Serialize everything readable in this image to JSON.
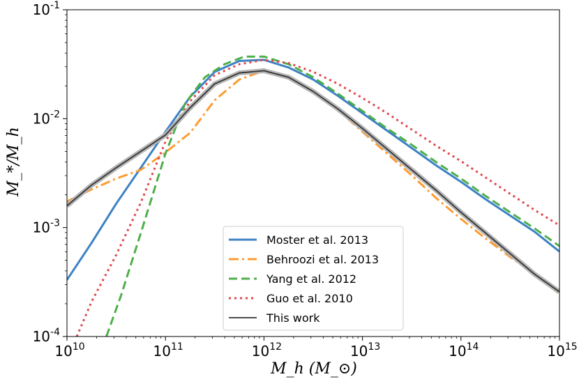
{
  "chart_data": {
    "type": "line",
    "xscale": "log",
    "yscale": "log",
    "xlim": [
      10,
      15
    ],
    "ylim": [
      -4,
      -1
    ],
    "xlabel": "M_h (M_⊙)",
    "ylabel": "M_*/M_h",
    "x_ticks": [
      {
        "base": "10",
        "exp": "10",
        "value": 10
      },
      {
        "base": "10",
        "exp": "11",
        "value": 11
      },
      {
        "base": "10",
        "exp": "12",
        "value": 12
      },
      {
        "base": "10",
        "exp": "13",
        "value": 13
      },
      {
        "base": "10",
        "exp": "14",
        "value": 14
      },
      {
        "base": "10",
        "exp": "15",
        "value": 15
      }
    ],
    "y_ticks": [
      {
        "base": "10",
        "exp": "-4",
        "value": -4
      },
      {
        "base": "10",
        "exp": "-3",
        "value": -3
      },
      {
        "base": "10",
        "exp": "-2",
        "value": -2
      },
      {
        "base": "10",
        "exp": "-1",
        "value": -1
      }
    ],
    "series": [
      {
        "name": "Moster et al. 2013",
        "color": "#3b82c4",
        "style": "solid",
        "x": [
          10.0,
          10.25,
          10.5,
          10.75,
          11.0,
          11.25,
          11.5,
          11.75,
          12.0,
          12.25,
          12.5,
          12.75,
          13.0,
          13.25,
          13.5,
          13.75,
          14.0,
          14.25,
          14.5,
          14.75,
          15.0
        ],
        "y": [
          -3.48,
          -3.14,
          -2.78,
          -2.45,
          -2.12,
          -1.8,
          -1.57,
          -1.47,
          -1.46,
          -1.53,
          -1.64,
          -1.79,
          -1.95,
          -2.11,
          -2.27,
          -2.43,
          -2.58,
          -2.74,
          -2.89,
          -3.04,
          -3.22
        ]
      },
      {
        "name": "Behroozi et al. 2013",
        "color": "#ff9b2f",
        "style": "dashdot",
        "x": [
          10.0,
          10.25,
          10.5,
          10.75,
          11.0,
          11.25,
          11.5,
          11.75,
          12.0,
          12.25,
          12.5,
          12.75,
          13.0,
          13.25,
          13.5,
          13.75,
          14.0,
          14.25,
          14.5,
          14.75,
          15.0
        ],
        "y": [
          -2.76,
          -2.65,
          -2.55,
          -2.47,
          -2.31,
          -2.13,
          -1.83,
          -1.64,
          -1.56,
          -1.62,
          -1.75,
          -1.92,
          -2.12,
          -2.32,
          -2.52,
          -2.73,
          -2.92,
          -3.1,
          -3.27,
          -3.43,
          -3.61
        ]
      },
      {
        "name": "Yang et al. 2012",
        "color": "#4daf4a",
        "style": "dashed",
        "x": [
          10.4,
          10.55,
          10.75,
          11.0,
          11.2,
          11.4,
          11.6,
          11.8,
          12.0,
          12.25,
          12.5,
          12.75,
          13.0,
          13.25,
          13.5,
          13.75,
          14.0,
          14.25,
          14.5,
          14.75,
          15.0
        ],
        "y": [
          -4.0,
          -3.62,
          -3.05,
          -2.32,
          -1.86,
          -1.62,
          -1.5,
          -1.43,
          -1.43,
          -1.5,
          -1.62,
          -1.77,
          -1.93,
          -2.09,
          -2.24,
          -2.4,
          -2.55,
          -2.71,
          -2.86,
          -3.01,
          -3.17
        ]
      },
      {
        "name": "Guo et al. 2010",
        "color": "#e0474c",
        "style": "dotted",
        "x": [
          10.1,
          10.25,
          10.5,
          10.75,
          11.0,
          11.25,
          11.5,
          11.75,
          12.0,
          12.25,
          12.5,
          12.75,
          13.0,
          13.25,
          13.5,
          13.75,
          14.0,
          14.25,
          14.5,
          14.75,
          15.0
        ],
        "y": [
          -4.0,
          -3.68,
          -3.25,
          -2.77,
          -2.21,
          -1.84,
          -1.6,
          -1.5,
          -1.46,
          -1.49,
          -1.57,
          -1.68,
          -1.81,
          -1.95,
          -2.1,
          -2.25,
          -2.39,
          -2.54,
          -2.69,
          -2.84,
          -2.98
        ]
      },
      {
        "name": "This work",
        "color": "#333333",
        "style": "solid",
        "x": [
          10.0,
          10.25,
          10.5,
          10.75,
          11.0,
          11.25,
          11.5,
          11.75,
          12.0,
          12.25,
          12.5,
          12.75,
          13.0,
          13.25,
          13.5,
          13.75,
          14.0,
          14.25,
          14.5,
          14.75,
          15.0
        ],
        "y": [
          -2.8,
          -2.61,
          -2.45,
          -2.3,
          -2.15,
          -1.9,
          -1.68,
          -1.58,
          -1.56,
          -1.62,
          -1.75,
          -1.91,
          -2.09,
          -2.28,
          -2.47,
          -2.66,
          -2.86,
          -3.05,
          -3.24,
          -3.43,
          -3.59
        ]
      }
    ],
    "legend": {
      "position": "lower-center"
    }
  }
}
